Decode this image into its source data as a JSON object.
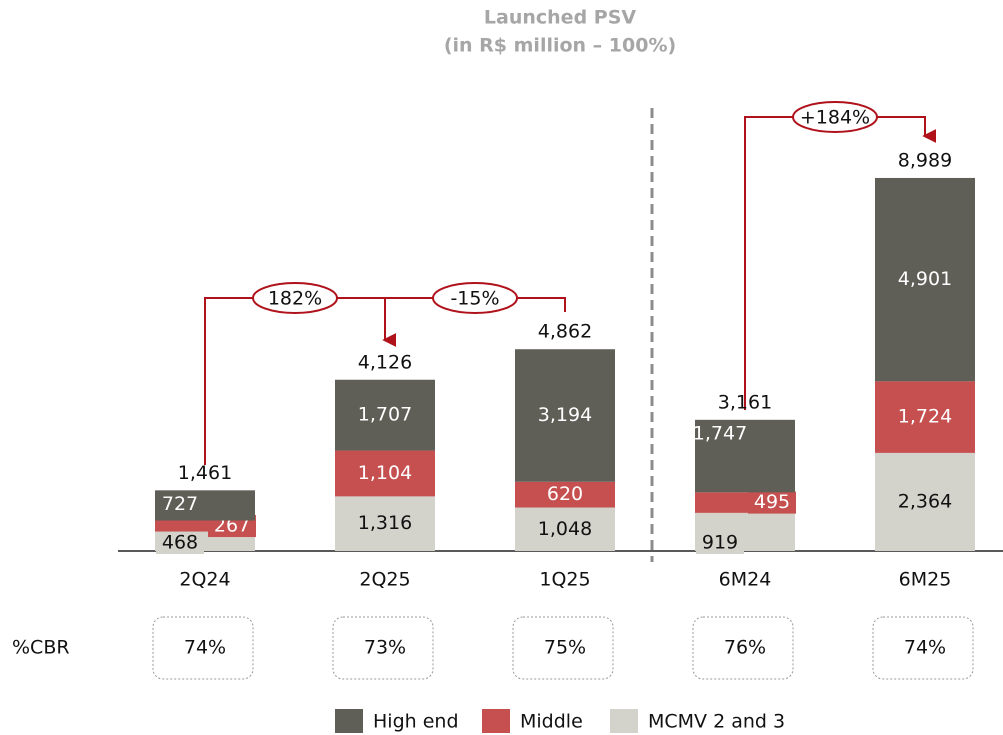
{
  "chart_data": {
    "type": "stacked_bar",
    "title": "Launched PSV",
    "subtitle": "(in R$ million – 100%)",
    "categories": [
      "2Q24",
      "2Q25",
      "1Q25",
      "6M24",
      "6M25"
    ],
    "series": [
      {
        "name": "MCMV 2 and 3",
        "color": "#d3d2cb",
        "values": [
          468,
          1316,
          1048,
          919,
          2364
        ],
        "value_labels": [
          "468",
          "1,316",
          "1,048",
          "919",
          "2,364"
        ]
      },
      {
        "name": "Middle",
        "color": "#c5504f",
        "values": [
          267,
          1104,
          620,
          495,
          1724
        ],
        "value_labels": [
          "267",
          "1,104",
          "620",
          "495",
          "1,724"
        ]
      },
      {
        "name": "High end",
        "color": "#5f5e57",
        "values": [
          727,
          1707,
          3194,
          1747,
          4901
        ],
        "value_labels": [
          "727",
          "1,707",
          "3,194",
          "1,747",
          "4,901"
        ]
      }
    ],
    "totals": [
      1461,
      4126,
      4862,
      3161,
      8989
    ],
    "total_labels": [
      "1,461",
      "4,126",
      "4,862",
      "3,161",
      "8,989"
    ],
    "annotations": [
      "182%",
      "-15%",
      "+184%"
    ],
    "cbr": {
      "label": "%CBR",
      "values": [
        74,
        73,
        75,
        76,
        74
      ],
      "value_labels": [
        "74%",
        "73%",
        "75%",
        "76%",
        "74%"
      ]
    }
  }
}
